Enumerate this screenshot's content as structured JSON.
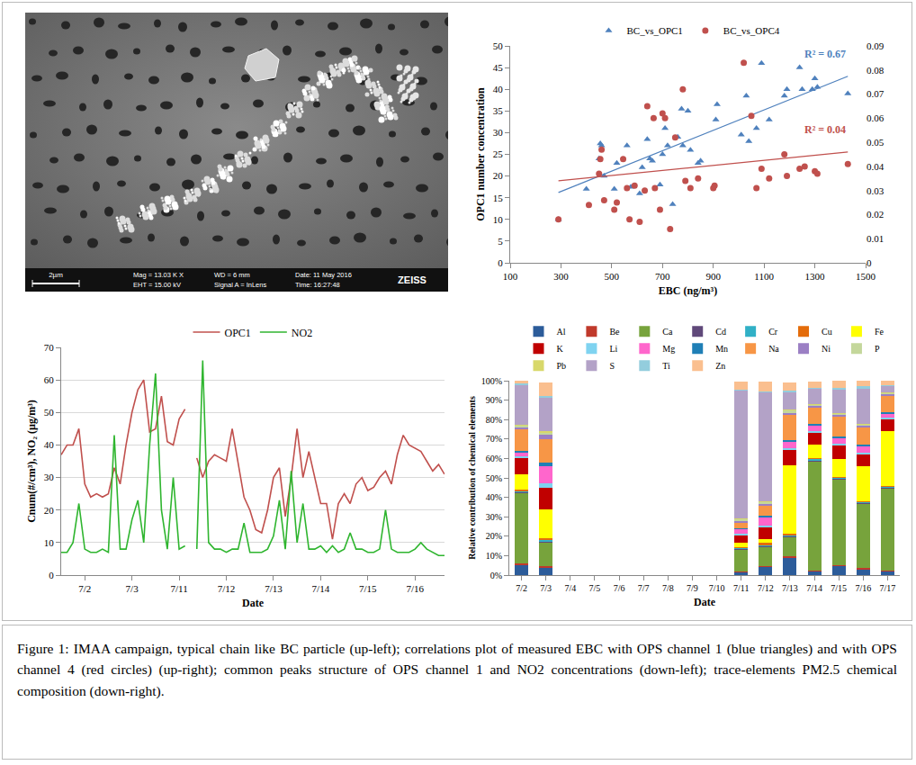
{
  "sem_image": {
    "scale_bar": "2µm",
    "info": [
      [
        "Mag = 13.03 K X",
        "EHT = 15.00 kV"
      ],
      [
        "WD = 6 mm",
        "Signal A = InLens"
      ],
      [
        "Date: 11 May 2016",
        "Time: 16:27:48"
      ]
    ],
    "brand": "ZEISS"
  },
  "chart_data": [
    {
      "type": "scatter",
      "x_label": "EBC (ng/m³)",
      "y_label": "OPC1 number concentration",
      "xlim": [
        100,
        1500
      ],
      "xticks": [
        100,
        300,
        500,
        700,
        900,
        1100,
        1300,
        1500
      ],
      "ylim": [
        0,
        50
      ],
      "yticks": [
        0,
        5,
        10,
        15,
        20,
        25,
        30,
        35,
        40,
        45,
        50
      ],
      "y2lim": [
        0,
        0.09
      ],
      "y2ticks": [
        0,
        0.01,
        0.02,
        0.03,
        0.04,
        0.05,
        0.06,
        0.07,
        0.08,
        0.09
      ],
      "grid": false,
      "legend": "top",
      "series": [
        {
          "name": "BC_vs_OPC1",
          "color": "#4f81bd",
          "marker": "triangle-up",
          "x": [
            290,
            400,
            450,
            455,
            460,
            470,
            510,
            520,
            560,
            575,
            610,
            620,
            640,
            650,
            660,
            690,
            700,
            710,
            720,
            740,
            760,
            775,
            780,
            800,
            810,
            840,
            850,
            910,
            915,
            1010,
            1030,
            1040,
            1070,
            1090,
            1120,
            1180,
            1190,
            1240,
            1250,
            1290,
            1300,
            1310,
            1430
          ],
          "values": [
            10,
            17,
            24,
            27.5,
            27,
            20,
            17,
            23,
            27,
            17.5,
            16,
            22,
            28.5,
            24,
            23.5,
            18,
            25,
            31,
            27,
            13.5,
            29,
            35.5,
            27,
            35,
            26,
            23,
            23.5,
            33,
            36.5,
            29.5,
            38.5,
            28,
            31,
            46,
            33,
            38.5,
            40,
            45,
            40,
            40,
            42.5,
            40.5,
            39
          ],
          "trendline": {
            "x": [
              290,
              1430
            ],
            "values": [
              16.2,
              43
            ]
          },
          "trend_label": "R² = 0.67"
        },
        {
          "name": "BC_vs_OPC4",
          "color": "#c0504d",
          "marker": "circle",
          "axis": "y2",
          "x": [
            290,
            410,
            450,
            455,
            460,
            470,
            510,
            520,
            545,
            560,
            570,
            590,
            610,
            630,
            640,
            665,
            670,
            690,
            700,
            710,
            730,
            750,
            780,
            790,
            810,
            840,
            900,
            905,
            1020,
            1050,
            1070,
            1090,
            1120,
            1180,
            1190,
            1240,
            1260,
            1300,
            1310,
            1430
          ],
          "values": [
            0.018,
            0.024,
            0.037,
            0.043,
            0.047,
            0.026,
            0.022,
            0.025,
            0.043,
            0.031,
            0.018,
            0.032,
            0.017,
            0.03,
            0.065,
            0.06,
            0.031,
            0.022,
            0.062,
            0.06,
            0.014,
            0.052,
            0.072,
            0.034,
            0.031,
            0.035,
            0.031,
            0.032,
            0.083,
            0.061,
            0.031,
            0.039,
            0.035,
            0.045,
            0.036,
            0.039,
            0.04,
            0.038,
            0.037,
            0.041
          ],
          "trendline": {
            "x": [
              290,
              1430
            ],
            "values": [
              0.034,
              0.046
            ]
          },
          "trend_label": "R² = 0.04"
        }
      ]
    },
    {
      "type": "line",
      "x_label": "Date",
      "y_label": "Cnum(#/cm³), NO₂ (µg/m³)",
      "categories": [
        null,
        null,
        null,
        null,
        "7/2",
        null,
        null,
        null,
        null,
        null,
        null,
        null,
        "7/3",
        null,
        null,
        null,
        null,
        null,
        null,
        null,
        "7/11",
        null,
        null,
        null,
        null,
        null,
        null,
        null,
        "7/12",
        null,
        null,
        null,
        null,
        null,
        null,
        null,
        "7/13",
        null,
        null,
        null,
        null,
        null,
        null,
        null,
        "7/14",
        null,
        null,
        null,
        null,
        null,
        null,
        null,
        "7/15",
        null,
        null,
        null,
        null,
        null,
        null,
        null,
        "7/16",
        null,
        null,
        null,
        null,
        null
      ],
      "ylim": [
        0,
        70
      ],
      "yticks": [
        0,
        10,
        20,
        30,
        40,
        50,
        60,
        70
      ],
      "grid": true,
      "legend": "top",
      "series": [
        {
          "name": "OPC1",
          "color": "#c0504d",
          "values": [
            37,
            40,
            40,
            45,
            28,
            24,
            25,
            24,
            25,
            33,
            28,
            40,
            50,
            57,
            60,
            44,
            45,
            55,
            41,
            40,
            48,
            51,
            null,
            36,
            30,
            35,
            37,
            36,
            35,
            45,
            35,
            24,
            20,
            14,
            13,
            20,
            30,
            33,
            18,
            30,
            45,
            30,
            38,
            30,
            22,
            22,
            11,
            22,
            25,
            22,
            28,
            30,
            26,
            27,
            30,
            32,
            28,
            37,
            43,
            40,
            39,
            38,
            35,
            32,
            34,
            31
          ]
        },
        {
          "name": "NO2",
          "color": "#2fb52f",
          "values": [
            7,
            7,
            10,
            22,
            8,
            7,
            7,
            8,
            7,
            43,
            8,
            8,
            17,
            23,
            10,
            40,
            62,
            20,
            8,
            30,
            8,
            9,
            null,
            8,
            66,
            10,
            8,
            8,
            7,
            8,
            8,
            16,
            7,
            7,
            7,
            8,
            12,
            23,
            8,
            32,
            10,
            22,
            8,
            8,
            9,
            7,
            9,
            7,
            8,
            13,
            8,
            8,
            7,
            7,
            8,
            20,
            8,
            7,
            7,
            7,
            8,
            10,
            8,
            7,
            6,
            6
          ]
        }
      ]
    },
    {
      "type": "bar",
      "stacked": true,
      "x_label": "Date",
      "y_label": "Relative contribution of chemical elements",
      "categories": [
        "7/2",
        "7/3",
        "7/4",
        "7/5",
        "7/6",
        "7/7",
        "7/8",
        "7/9",
        "7/10",
        "7/11",
        "7/12",
        "7/13",
        "7/14",
        "7/15",
        "7/16",
        "7/17"
      ],
      "ylim": [
        0,
        100
      ],
      "yticks": [
        {
          "value": 0,
          "label": "0%"
        },
        {
          "value": 10,
          "label": "10%"
        },
        {
          "value": 20,
          "label": "20%"
        },
        {
          "value": 30,
          "label": "30%"
        },
        {
          "value": 40,
          "label": "40%"
        },
        {
          "value": 50,
          "label": "50%"
        },
        {
          "value": 60,
          "label": "60%"
        },
        {
          "value": 70,
          "label": "70%"
        },
        {
          "value": 80,
          "label": "80%"
        },
        {
          "value": 90,
          "label": "90%"
        },
        {
          "value": 100,
          "label": "100%"
        }
      ],
      "grid": false,
      "legend": "top",
      "series": [
        {
          "name": "Al",
          "color": "#2c5c9a",
          "values": [
            5,
            3.5,
            0,
            0,
            0,
            0,
            0,
            0,
            0,
            1.5,
            4,
            9,
            2,
            4.5,
            3,
            2
          ]
        },
        {
          "name": "Be",
          "color": "#c0392b",
          "values": [
            1,
            1,
            0,
            0,
            0,
            0,
            0,
            0,
            0,
            0.5,
            0.5,
            0.5,
            0.5,
            0.5,
            0.5,
            0.5
          ]
        },
        {
          "name": "Ca",
          "color": "#77a33c",
          "values": [
            36,
            12,
            0,
            0,
            0,
            0,
            0,
            0,
            0,
            11,
            10,
            10,
            56,
            44,
            33,
            42
          ]
        },
        {
          "name": "Cd",
          "color": "#60497a",
          "values": [
            0.5,
            0.5,
            0,
            0,
            0,
            0,
            0,
            0,
            0,
            0.5,
            0.5,
            0.5,
            0.5,
            0.5,
            0.5,
            0.5
          ]
        },
        {
          "name": "Cr",
          "color": "#31b0c6",
          "values": [
            0.5,
            1,
            0,
            0,
            0,
            0,
            0,
            0,
            0,
            0.5,
            0.5,
            0.5,
            0.5,
            0.5,
            0.5,
            0.5
          ]
        },
        {
          "name": "Cu",
          "color": "#e46c0a",
          "values": [
            1,
            1,
            0,
            0,
            0,
            0,
            0,
            0,
            0,
            0.5,
            1,
            1,
            0.5,
            0.5,
            0.5,
            0.5
          ]
        },
        {
          "name": "Fe",
          "color": "#ffff00",
          "values": [
            8,
            15,
            0,
            0,
            0,
            0,
            0,
            0,
            0,
            2,
            2,
            35,
            7,
            9,
            18,
            28
          ]
        },
        {
          "name": "K",
          "color": "#c00000",
          "values": [
            8,
            11,
            0,
            0,
            0,
            0,
            0,
            0,
            0,
            4,
            6,
            8,
            6,
            7,
            6,
            6
          ]
        },
        {
          "name": "Li",
          "color": "#7fd3f0",
          "values": [
            1,
            2,
            0,
            0,
            0,
            0,
            0,
            0,
            0,
            1,
            1,
            1,
            1,
            1,
            1,
            1
          ]
        },
        {
          "name": "Mg",
          "color": "#ff66cc",
          "values": [
            2,
            9,
            0,
            0,
            0,
            0,
            0,
            0,
            0,
            2,
            4,
            3,
            3,
            3,
            3,
            2
          ]
        },
        {
          "name": "Mn",
          "color": "#1f7fb6",
          "values": [
            1,
            2,
            0,
            0,
            0,
            0,
            0,
            0,
            0,
            0.5,
            1,
            1,
            1,
            1,
            1,
            1
          ]
        },
        {
          "name": "Na",
          "color": "#f79646",
          "values": [
            11,
            12,
            0,
            0,
            0,
            0,
            0,
            0,
            0,
            3,
            5,
            13,
            8,
            10,
            9,
            8
          ]
        },
        {
          "name": "Ni",
          "color": "#9b7fc4",
          "values": [
            1,
            2,
            0,
            0,
            0,
            0,
            0,
            0,
            0,
            1,
            1,
            1,
            1,
            1,
            1,
            1
          ]
        },
        {
          "name": "P",
          "color": "#c4d79b",
          "values": [
            1,
            1,
            0,
            0,
            0,
            0,
            0,
            0,
            0,
            0.5,
            1,
            1,
            0.5,
            0.5,
            0.5,
            0.5
          ]
        },
        {
          "name": "Pb",
          "color": "#d8d86a",
          "values": [
            0.5,
            1,
            0,
            0,
            0,
            0,
            0,
            0,
            0,
            0.5,
            0.5,
            0.5,
            0.5,
            0.5,
            0.5,
            0.5
          ]
        },
        {
          "name": "S",
          "color": "#b3a2c7",
          "values": [
            20,
            17,
            0,
            0,
            0,
            0,
            0,
            0,
            0,
            66,
            56,
            9,
            8,
            12,
            18,
            3
          ]
        },
        {
          "name": "Ti",
          "color": "#93cddd",
          "values": [
            1,
            1,
            0,
            0,
            0,
            0,
            0,
            0,
            0,
            0.5,
            0.5,
            1,
            0.5,
            1,
            1,
            0.5
          ]
        },
        {
          "name": "Zn",
          "color": "#fabf8f",
          "values": [
            1.5,
            7,
            0,
            0,
            0,
            0,
            0,
            0,
            0,
            4,
            5,
            4,
            3,
            3.5,
            3,
            2.5
          ]
        }
      ]
    }
  ],
  "caption": "Figure 1: IMAA campaign, typical chain like BC particle (up-left); correlations plot of measured EBC with OPS channel 1 (blue triangles) and with OPS channel 4 (red circles) (up-right); common peaks structure of OPS channel 1 and NO2 concentrations (down-left); trace-elements PM2.5 chemical composition (down-right)."
}
